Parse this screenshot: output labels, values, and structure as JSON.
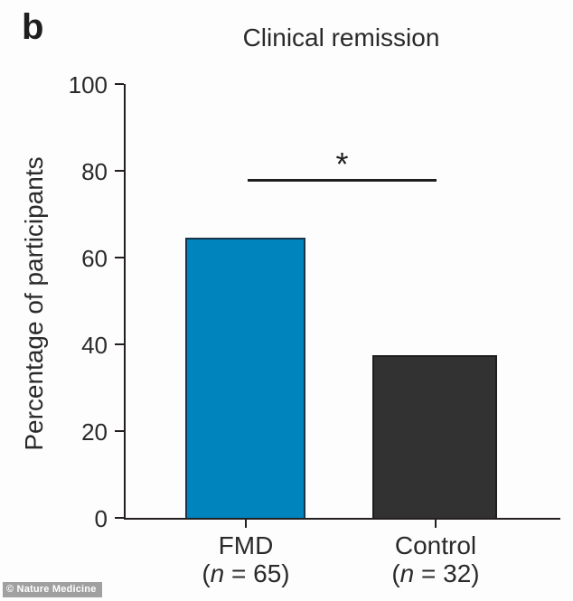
{
  "panel_label": "b",
  "watermark": "© Nature Medicine",
  "chart_data": {
    "type": "bar",
    "title": "Clinical remission",
    "xlabel": "",
    "ylabel": "Percentage of participants",
    "ylim": [
      0,
      100
    ],
    "yticks": [
      0,
      20,
      40,
      60,
      80,
      100
    ],
    "grid": false,
    "legend": false,
    "categories": [
      "FMD",
      "Control"
    ],
    "n_labels": [
      "(n = 65)",
      "(n = 32)"
    ],
    "values": [
      64.5,
      37.5
    ],
    "bar_colors": [
      "#0084bd",
      "#323232"
    ],
    "bar_edge_colors": [
      "#17364d",
      "#1e1e1e"
    ],
    "axis_color": "#231f20",
    "significance": {
      "label": "*",
      "between": [
        "FMD",
        "Control"
      ],
      "line_y": 77.5
    }
  }
}
